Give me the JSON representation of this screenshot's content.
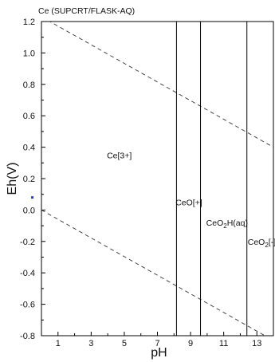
{
  "chart_data": {
    "type": "line",
    "title": "Ce (SUPCRT/FLASK-AQ)",
    "xlabel": "pH",
    "ylabel": "Eh(V)",
    "xlim": [
      0,
      14
    ],
    "ylim": [
      -0.8,
      1.2
    ],
    "x_ticks": [
      1,
      3,
      5,
      7,
      9,
      11,
      13
    ],
    "y_ticks": [
      -0.8,
      -0.6,
      -0.4,
      -0.2,
      0.0,
      0.2,
      0.4,
      0.6,
      0.8,
      1.0,
      1.2
    ],
    "y_tick_labels": [
      "-0.8",
      "-0.6",
      "-0.4",
      "-0.2",
      "0.0",
      "0.2",
      "0.4",
      "0.6",
      "0.8",
      "1.0",
      "1.2"
    ],
    "grid": false,
    "legend": "none",
    "water_stability_lines": [
      {
        "style": "dashed",
        "x": [
          0,
          14
        ],
        "y": [
          1.23,
          0.4
        ]
      },
      {
        "style": "dashed",
        "x": [
          0,
          14
        ],
        "y": [
          0.0,
          -0.83
        ]
      }
    ],
    "boundaries": [
      {
        "x": [
          8.15,
          8.15
        ],
        "y": [
          -0.8,
          1.2
        ]
      },
      {
        "x": [
          9.6,
          9.6
        ],
        "y": [
          -0.8,
          1.2
        ]
      },
      {
        "x": [
          12.4,
          12.4
        ],
        "y": [
          -0.8,
          1.2
        ]
      }
    ],
    "regions": [
      {
        "label": "Ce[3+]",
        "x": 4.7,
        "y": 0.35
      },
      {
        "label": "CeO[+]",
        "x": 8.9,
        "y": 0.05
      },
      {
        "label": "CeO",
        "sub": "2",
        "rest": "H(aq)",
        "x": 11.2,
        "y": -0.08
      },
      {
        "label": "CeO",
        "sub": "2",
        "rest": "[-]",
        "x": 13.3,
        "y": -0.2
      }
    ],
    "markers": [
      {
        "x": -0.55,
        "y": 0.08,
        "color": "#1f3bd6"
      }
    ]
  }
}
